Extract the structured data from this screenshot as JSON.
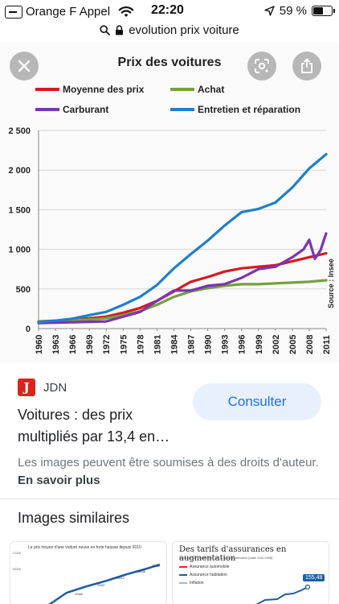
{
  "status_bar": {
    "carrier": "Orange F Appel",
    "time": "22:20",
    "battery_percent": "59 %",
    "battery_level": 0.59
  },
  "url_bar": {
    "search_text": "evolution prix voiture"
  },
  "overlay": {
    "close_icon": "close-icon",
    "lens_icon": "lens-icon",
    "share_icon": "share-icon"
  },
  "chart_data": {
    "type": "line",
    "title": "Prix des voitures",
    "source_note": "Source : Insee",
    "ylim": [
      0,
      2500
    ],
    "yticks": [
      "2 500",
      "2 000",
      "1 500",
      "1 000",
      "500",
      "0"
    ],
    "ytick_values": [
      2500,
      2000,
      1500,
      1000,
      500,
      0
    ],
    "xlim": [
      1960,
      2011
    ],
    "xticks": [
      "1960",
      "1963",
      "1966",
      "1969",
      "1972",
      "1975",
      "1978",
      "1981",
      "1984",
      "1987",
      "1990",
      "1993",
      "1996",
      "1999",
      "2002",
      "2005",
      "2008",
      "2011"
    ],
    "xtick_values": [
      1960,
      1963,
      1966,
      1969,
      1972,
      1975,
      1978,
      1981,
      1984,
      1987,
      1990,
      1993,
      1996,
      1999,
      2002,
      2005,
      2008,
      2011
    ],
    "grid": true,
    "legend_position": "top",
    "series": [
      {
        "name": "Moyenne des prix",
        "color": "#d71920",
        "points": [
          [
            1960,
            90
          ],
          [
            1963,
            100
          ],
          [
            1966,
            115
          ],
          [
            1969,
            130
          ],
          [
            1972,
            150
          ],
          [
            1975,
            200
          ],
          [
            1978,
            260
          ],
          [
            1981,
            350
          ],
          [
            1984,
            470
          ],
          [
            1987,
            590
          ],
          [
            1990,
            650
          ],
          [
            1993,
            720
          ],
          [
            1996,
            760
          ],
          [
            1999,
            780
          ],
          [
            2002,
            800
          ],
          [
            2005,
            850
          ],
          [
            2008,
            900
          ],
          [
            2011,
            950
          ]
        ]
      },
      {
        "name": "Achat",
        "color": "#77a03e",
        "points": [
          [
            1960,
            90
          ],
          [
            1963,
            95
          ],
          [
            1966,
            105
          ],
          [
            1969,
            115
          ],
          [
            1972,
            130
          ],
          [
            1975,
            170
          ],
          [
            1978,
            220
          ],
          [
            1981,
            300
          ],
          [
            1984,
            400
          ],
          [
            1987,
            470
          ],
          [
            1990,
            510
          ],
          [
            1993,
            540
          ],
          [
            1996,
            560
          ],
          [
            1999,
            560
          ],
          [
            2002,
            570
          ],
          [
            2005,
            580
          ],
          [
            2008,
            590
          ],
          [
            2011,
            610
          ]
        ]
      },
      {
        "name": "Carburant",
        "color": "#7b35b0",
        "points": [
          [
            1960,
            70
          ],
          [
            1963,
            75
          ],
          [
            1966,
            80
          ],
          [
            1969,
            85
          ],
          [
            1972,
            90
          ],
          [
            1975,
            150
          ],
          [
            1978,
            210
          ],
          [
            1981,
            350
          ],
          [
            1984,
            480
          ],
          [
            1987,
            480
          ],
          [
            1990,
            540
          ],
          [
            1993,
            560
          ],
          [
            1996,
            640
          ],
          [
            1999,
            750
          ],
          [
            2002,
            780
          ],
          [
            2005,
            900
          ],
          [
            2007,
            1000
          ],
          [
            2008,
            1120
          ],
          [
            2009,
            880
          ],
          [
            2010,
            990
          ],
          [
            2011,
            1200
          ]
        ]
      },
      {
        "name": "Entretien et réparation",
        "color": "#1f7fce",
        "points": [
          [
            1960,
            80
          ],
          [
            1963,
            100
          ],
          [
            1966,
            125
          ],
          [
            1969,
            170
          ],
          [
            1972,
            210
          ],
          [
            1975,
            300
          ],
          [
            1978,
            400
          ],
          [
            1981,
            550
          ],
          [
            1984,
            760
          ],
          [
            1987,
            940
          ],
          [
            1990,
            1110
          ],
          [
            1993,
            1300
          ],
          [
            1996,
            1470
          ],
          [
            1999,
            1510
          ],
          [
            2002,
            1590
          ],
          [
            2005,
            1780
          ],
          [
            2008,
            2020
          ],
          [
            2011,
            2200
          ]
        ]
      }
    ]
  },
  "result": {
    "source_logo": "J",
    "source_name": "JDN",
    "consult_label": "Consulter",
    "title": "Voitures : des prix multipliés par 13,4 en…",
    "rights_text": "Les images peuvent être soumises à des droits d'auteur.",
    "rights_link": "En savoir plus"
  },
  "similar": {
    "title": "Images similaires",
    "thumb1": {
      "title": "Le prix moyen d'une voiture neuve en forte hausse depuis 2010",
      "yticks": [
        "17000",
        "15000"
      ],
      "labels": [
        "22466",
        "23407",
        "24013",
        "25108",
        "25628"
      ]
    },
    "thumb2": {
      "title": "Des tarifs d'assurances en augmentation",
      "subtitle": "Evolution de l'indice des prix à la consommation (base 100=1998)",
      "legend": [
        "Assurance automobile",
        "Assurance habitation",
        "Inflation"
      ],
      "legend_colors": [
        "#d42a2a",
        "#1f5fa0",
        "#9bbbe0"
      ],
      "badge": "155,48"
    }
  }
}
